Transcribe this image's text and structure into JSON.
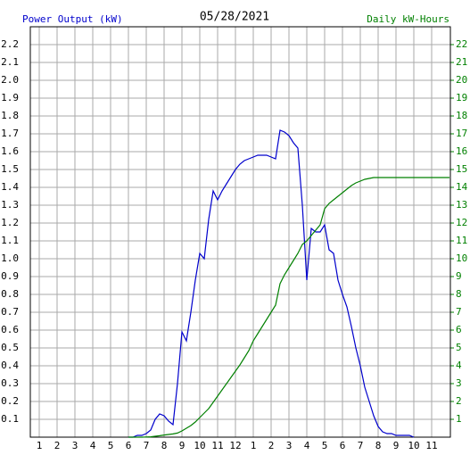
{
  "chart_data": {
    "type": "line",
    "title": "05/28/2021",
    "y_label": "Power Output (kW)",
    "y2_label": "Daily kW-Hours",
    "x": [
      6.0,
      6.25,
      6.5,
      6.75,
      7.0,
      7.25,
      7.5,
      7.75,
      8.0,
      8.25,
      8.5,
      8.75,
      9.0,
      9.25,
      9.5,
      9.75,
      10.0,
      10.25,
      10.5,
      10.75,
      11.0,
      11.25,
      11.5,
      11.75,
      12.0,
      12.25,
      12.5,
      12.75,
      13.0,
      13.25,
      13.5,
      13.75,
      14.0,
      14.25,
      14.5,
      14.75,
      15.0,
      15.25,
      15.5,
      15.75,
      16.0,
      16.25,
      16.5,
      16.75,
      17.0,
      17.25,
      17.5,
      17.75,
      18.0,
      18.25,
      18.5,
      18.75,
      19.0,
      19.25,
      19.5,
      19.75,
      20.0,
      20.25,
      20.5,
      20.75,
      21.0,
      21.25,
      21.5,
      21.75,
      22.0,
      24.0
    ],
    "series": [
      {
        "name": "Power Output (kW)",
        "color": "#0000cc",
        "values": [
          0,
          0,
          0.01,
          0.01,
          0.02,
          0.04,
          0.1,
          0.13,
          0.12,
          0.09,
          0.07,
          0.3,
          0.59,
          0.54,
          0.7,
          0.88,
          1.03,
          1.0,
          1.22,
          1.38,
          1.33,
          1.38,
          1.42,
          1.46,
          1.5,
          1.53,
          1.55,
          1.56,
          1.57,
          1.58,
          1.58,
          1.58,
          1.57,
          1.56,
          1.72,
          1.71,
          1.69,
          1.65,
          1.62,
          1.3,
          0.88,
          1.17,
          1.15,
          1.15,
          1.19,
          1.05,
          1.03,
          0.88,
          0.8,
          0.73,
          0.62,
          0.5,
          0.4,
          0.28,
          0.2,
          0.12,
          0.06,
          0.03,
          0.02,
          0.02,
          0.01,
          0.01,
          0.01,
          0.01,
          0,
          null
        ]
      },
      {
        "name": "Daily kW-Hours",
        "color": "#008000",
        "axis": "y2",
        "values": [
          0,
          0,
          0,
          0,
          0.01,
          0.02,
          0.05,
          0.08,
          0.12,
          0.15,
          0.18,
          0.23,
          0.35,
          0.5,
          0.65,
          0.85,
          1.1,
          1.35,
          1.6,
          1.95,
          2.3,
          2.65,
          3.0,
          3.35,
          3.7,
          4.05,
          4.45,
          4.85,
          5.4,
          5.8,
          6.2,
          6.6,
          7.0,
          7.4,
          8.6,
          9.1,
          9.5,
          9.9,
          10.3,
          10.8,
          11.0,
          11.3,
          11.6,
          11.9,
          12.8,
          13.1,
          13.3,
          13.5,
          13.7,
          13.9,
          14.1,
          14.25,
          14.35,
          14.45,
          14.5,
          14.55,
          14.55,
          14.55,
          14.55,
          14.55,
          14.55,
          14.55,
          14.55,
          14.55,
          14.55,
          14.55
        ]
      }
    ],
    "xlim": [
      0.5,
      24.05
    ],
    "xticks": [
      {
        "value": 1,
        "label": "1"
      },
      {
        "value": 2,
        "label": "2"
      },
      {
        "value": 3,
        "label": "3"
      },
      {
        "value": 4,
        "label": "4"
      },
      {
        "value": 5,
        "label": "5"
      },
      {
        "value": 6,
        "label": "6"
      },
      {
        "value": 7,
        "label": "7"
      },
      {
        "value": 8,
        "label": "8"
      },
      {
        "value": 9,
        "label": "9"
      },
      {
        "value": 10,
        "label": "10"
      },
      {
        "value": 11,
        "label": "11"
      },
      {
        "value": 12,
        "label": "12"
      },
      {
        "value": 13,
        "label": "1"
      },
      {
        "value": 14,
        "label": "2"
      },
      {
        "value": 15,
        "label": "3"
      },
      {
        "value": 16,
        "label": "4"
      },
      {
        "value": 17,
        "label": "5"
      },
      {
        "value": 18,
        "label": "6"
      },
      {
        "value": 19,
        "label": "7"
      },
      {
        "value": 20,
        "label": "8"
      },
      {
        "value": 21,
        "label": "9"
      },
      {
        "value": 22,
        "label": "10"
      },
      {
        "value": 23,
        "label": "11"
      }
    ],
    "ylim": [
      0,
      2.3
    ],
    "yticks": [
      0.1,
      0.2,
      0.3,
      0.4,
      0.5,
      0.6,
      0.7,
      0.8,
      0.9,
      {
        "value": 1,
        "label": "1.0"
      },
      1.1,
      1.2,
      1.3,
      1.4,
      1.5,
      1.6,
      1.7,
      1.8,
      1.9,
      {
        "value": 2,
        "label": "2.0"
      },
      2.1,
      2.2
    ],
    "y2lim": [
      0,
      23
    ],
    "y2ticks": [
      1,
      2,
      3,
      4,
      5,
      6,
      7,
      8,
      9,
      10,
      11,
      12,
      13,
      14,
      15,
      16,
      17,
      18,
      19,
      20,
      21,
      22
    ],
    "grid": true
  }
}
